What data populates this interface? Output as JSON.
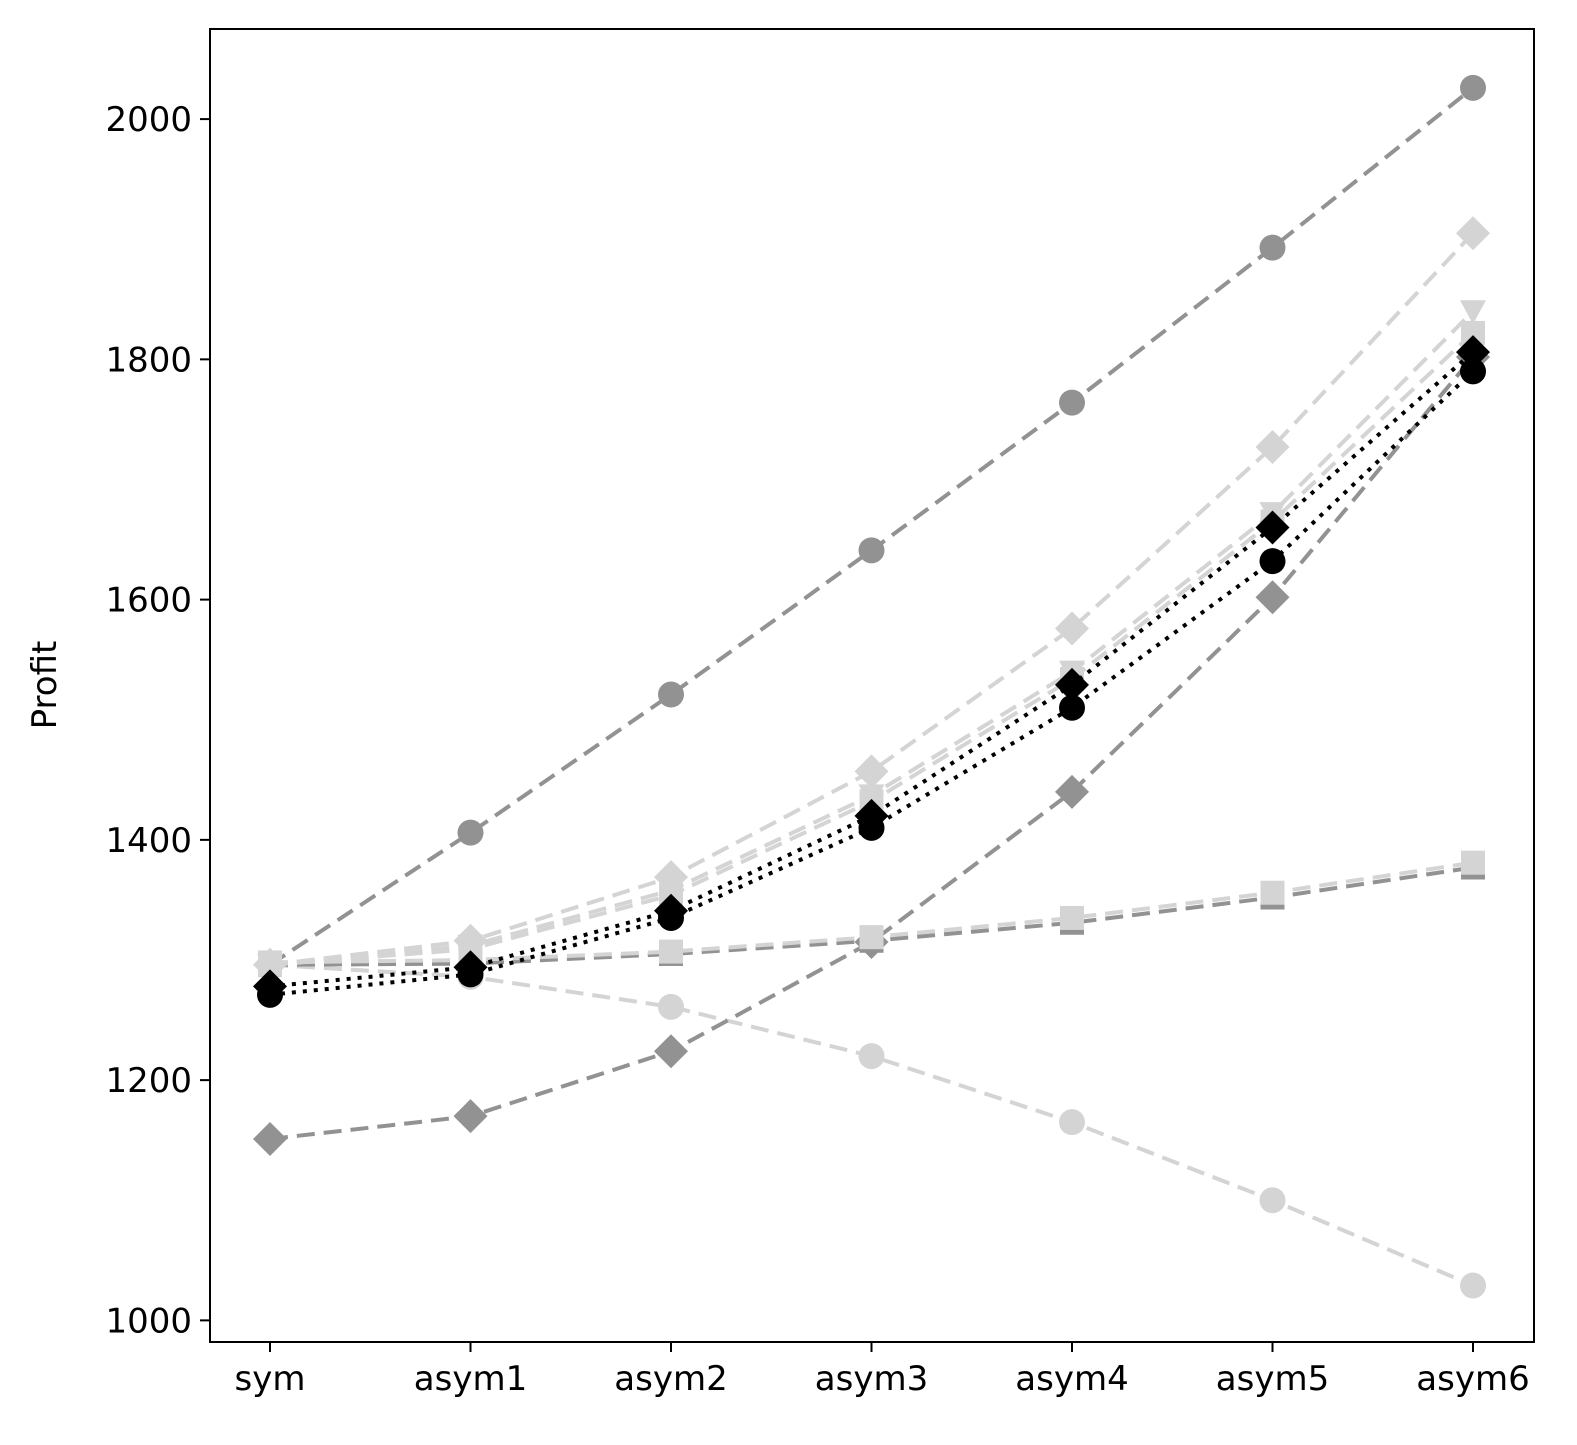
{
  "chart_data": {
    "type": "line",
    "title": "",
    "xlabel": "",
    "ylabel": "Profit",
    "categories": [
      "sym",
      "asym1",
      "asym2",
      "asym3",
      "asym4",
      "asym5",
      "asym6"
    ],
    "ylim": [
      982,
      2075
    ],
    "yticks": [
      1000,
      1200,
      1400,
      1600,
      1800,
      2000
    ],
    "grid": false,
    "legend": "none",
    "series": [
      {
        "color": "#929292",
        "linestyle": "dashed",
        "marker": "circle",
        "values": [
          1296,
          1406,
          1521,
          1641,
          1764,
          1893,
          2026
        ]
      },
      {
        "color": "#d4d4d4",
        "linestyle": "dashed",
        "marker": "circle",
        "values": [
          1296,
          1286,
          1261,
          1220,
          1165,
          1100,
          1029
        ]
      },
      {
        "color": "#929292",
        "linestyle": "dashed",
        "marker": "diamond",
        "values": [
          1151,
          1170,
          1224,
          1315,
          1440,
          1602,
          1802
        ]
      },
      {
        "color": "#929292",
        "linestyle": "dashed",
        "marker": "square",
        "values": [
          1296,
          1297,
          1305,
          1316,
          1331,
          1352,
          1377
        ]
      },
      {
        "color": "#d4d4d4",
        "linestyle": "dashed",
        "marker": "square",
        "values": [
          1298,
          1300,
          1307,
          1319,
          1335,
          1356,
          1381
        ]
      },
      {
        "color": "#d4d4d4",
        "linestyle": "dashed",
        "marker": "diamond",
        "values": [
          1296,
          1316,
          1369,
          1457,
          1576,
          1727,
          1905
        ]
      },
      {
        "color": "#d4d4d4",
        "linestyle": "dashed",
        "marker": "triangle-down",
        "values": [
          1296,
          1312,
          1358,
          1437,
          1540,
          1672,
          1840
        ]
      },
      {
        "color": "#d4d4d4",
        "linestyle": "dashed",
        "marker": "square",
        "values": [
          1296,
          1309,
          1354,
          1432,
          1534,
          1665,
          1822
        ]
      },
      {
        "color": "#000000",
        "linestyle": "dotted",
        "marker": "circle",
        "values": [
          1271,
          1288,
          1335,
          1410,
          1510,
          1632,
          1790
        ]
      },
      {
        "color": "#000000",
        "linestyle": "dotted",
        "marker": "diamond",
        "values": [
          1278,
          1294,
          1341,
          1420,
          1529,
          1660,
          1806
        ]
      }
    ]
  }
}
